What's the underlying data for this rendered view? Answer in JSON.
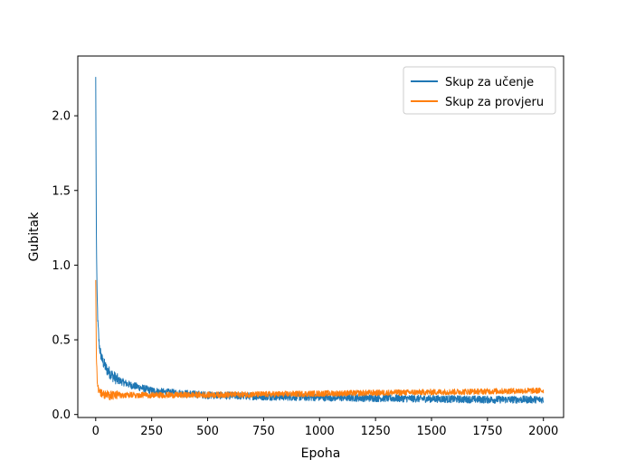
{
  "chart_data": {
    "type": "line",
    "title": "",
    "xlabel": "Epoha",
    "ylabel": "Gubitak",
    "xlim": [
      -80,
      2090
    ],
    "ylim": [
      -0.02,
      2.4
    ],
    "x_ticks": [
      0,
      250,
      500,
      750,
      1000,
      1250,
      1500,
      1750,
      2000
    ],
    "x_tick_labels": [
      "0",
      "250",
      "500",
      "750",
      "1000",
      "1250",
      "1500",
      "1750",
      "2000"
    ],
    "y_ticks": [
      0.0,
      0.5,
      1.0,
      1.5,
      2.0
    ],
    "y_tick_labels": [
      "0.0",
      "0.5",
      "1.0",
      "1.5",
      "2.0"
    ],
    "grid": false,
    "legend_position": "top-right",
    "series": [
      {
        "name": "Skup za učenje",
        "color": "#1f77b4",
        "x": [
          0,
          3,
          6,
          10,
          15,
          20,
          30,
          40,
          50,
          75,
          100,
          150,
          200,
          250,
          300,
          400,
          500,
          750,
          1000,
          1250,
          1500,
          1750,
          2000
        ],
        "values": [
          2.26,
          1.2,
          0.8,
          0.6,
          0.48,
          0.42,
          0.36,
          0.33,
          0.3,
          0.26,
          0.23,
          0.2,
          0.18,
          0.16,
          0.15,
          0.14,
          0.13,
          0.12,
          0.115,
          0.11,
          0.105,
          0.1,
          0.1
        ],
        "noise": 0.025
      },
      {
        "name": "Skup za provjeru",
        "color": "#ff7f0e",
        "x": [
          0,
          3,
          6,
          10,
          15,
          20,
          30,
          40,
          50,
          75,
          100,
          150,
          200,
          250,
          300,
          400,
          500,
          750,
          1000,
          1250,
          1500,
          1750,
          2000
        ],
        "values": [
          0.9,
          0.4,
          0.25,
          0.19,
          0.16,
          0.15,
          0.14,
          0.135,
          0.13,
          0.13,
          0.13,
          0.13,
          0.13,
          0.13,
          0.13,
          0.13,
          0.132,
          0.135,
          0.14,
          0.145,
          0.15,
          0.155,
          0.16
        ],
        "noise": 0.02
      }
    ]
  }
}
